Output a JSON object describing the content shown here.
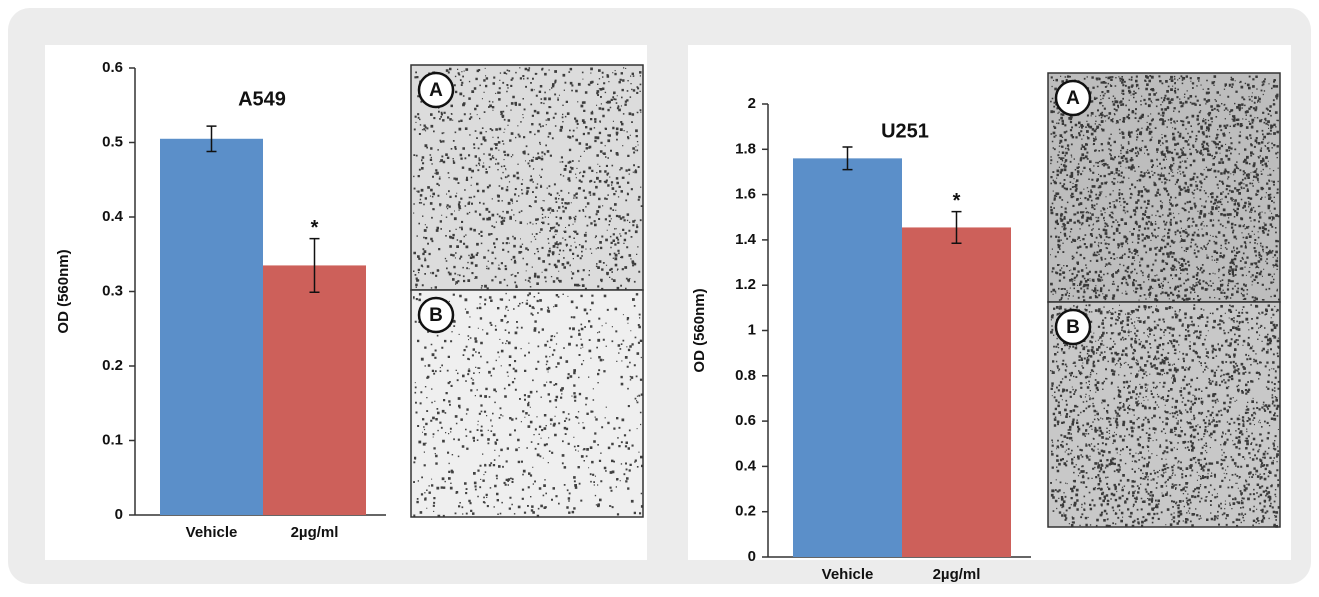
{
  "chart_data": [
    {
      "type": "bar",
      "title": "A549",
      "y_label": "OD (560nm)",
      "categories": [
        "Vehicle",
        "2µg/ml"
      ],
      "values": [
        0.505,
        0.335
      ],
      "errors": [
        0.017,
        0.036
      ],
      "colors": [
        "#5b8fc9",
        "#cd605a"
      ],
      "annotation": "*",
      "ylim": [
        0,
        0.6
      ],
      "yticks": [
        0,
        0.1,
        0.2,
        0.3,
        0.4,
        0.5,
        0.6
      ],
      "panels": [
        "A",
        "B"
      ]
    },
    {
      "type": "bar",
      "title": "U251",
      "y_label": "OD (560nm)",
      "categories": [
        "Vehicle",
        "2µg/ml"
      ],
      "values": [
        1.76,
        1.455
      ],
      "errors": [
        0.05,
        0.07
      ],
      "colors": [
        "#5b8fc9",
        "#cd605a"
      ],
      "annotation": "*",
      "ylim": [
        0,
        2
      ],
      "yticks": [
        0,
        0.2,
        0.4,
        0.6,
        0.8,
        1,
        1.2,
        1.4,
        1.6,
        1.8,
        2
      ],
      "panels": [
        "A",
        "B"
      ]
    }
  ]
}
